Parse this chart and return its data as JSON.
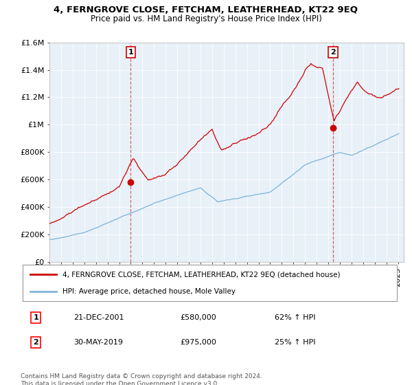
{
  "title1": "4, FERNGROVE CLOSE, FETCHAM, LEATHERHEAD, KT22 9EQ",
  "title2": "Price paid vs. HM Land Registry's House Price Index (HPI)",
  "ylim": [
    0,
    1600000
  ],
  "yticks": [
    0,
    200000,
    400000,
    600000,
    800000,
    1000000,
    1200000,
    1400000,
    1600000
  ],
  "ytick_labels": [
    "£0",
    "£200K",
    "£400K",
    "£600K",
    "£800K",
    "£1M",
    "£1.2M",
    "£1.4M",
    "£1.6M"
  ],
  "red_line_color": "#cc0000",
  "blue_line_color": "#7db4d8",
  "plot_bg_color": "#e8f0f8",
  "grid_color": "#ffffff",
  "marker1_date_num": 2002.0,
  "marker1_value": 580000,
  "marker1_label": "1",
  "marker1_date_str": "21-DEC-2001",
  "marker1_price_str": "£580,000",
  "marker1_hpi_str": "62% ↑ HPI",
  "marker2_date_num": 2019.42,
  "marker2_value": 975000,
  "marker2_label": "2",
  "marker2_date_str": "30-MAY-2019",
  "marker2_price_str": "£975,000",
  "marker2_hpi_str": "25% ↑ HPI",
  "legend_line1": "4, FERNGROVE CLOSE, FETCHAM, LEATHERHEAD, KT22 9EQ (detached house)",
  "legend_line2": "HPI: Average price, detached house, Mole Valley",
  "footnote": "Contains HM Land Registry data © Crown copyright and database right 2024.\nThis data is licensed under the Open Government Licence v3.0."
}
